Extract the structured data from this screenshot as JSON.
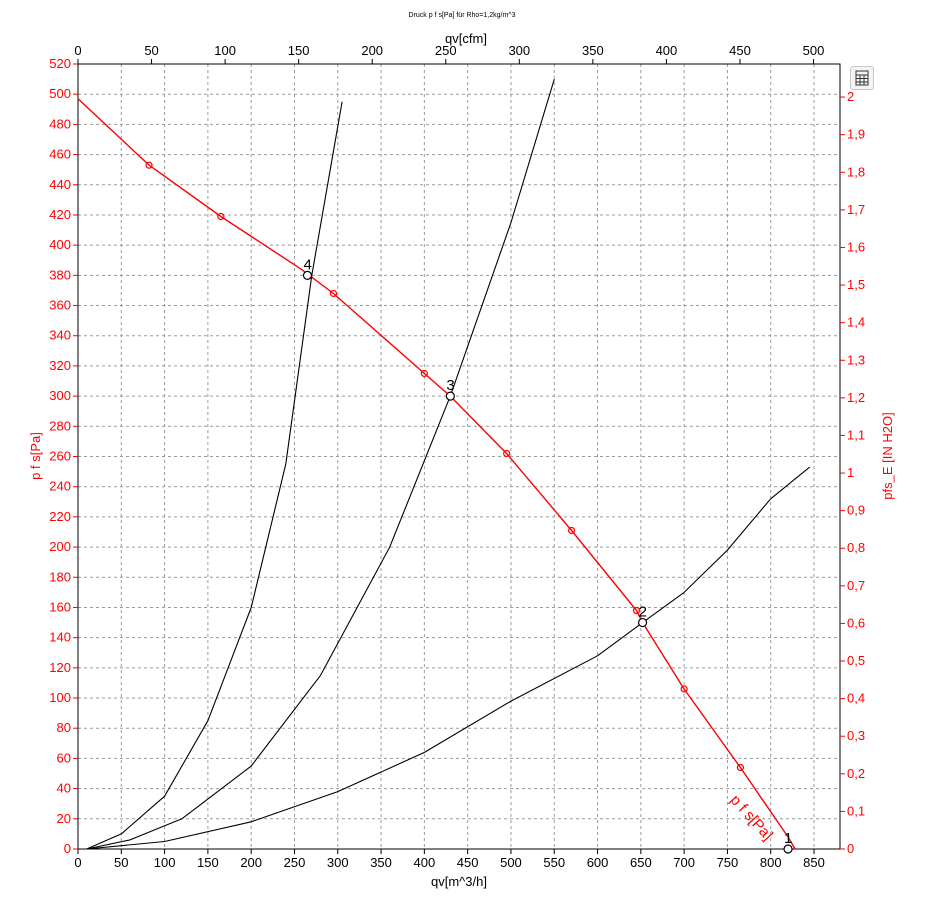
{
  "title": "Druck p f s[Pa] für Rho=1,2kg/m^3",
  "toolbar": {
    "icon": "table-icon"
  },
  "colors": {
    "fan_curve": "#ff0000",
    "system_curves": "#000000",
    "grid": "#9a9a9a"
  },
  "chart_data": {
    "type": "line",
    "x": {
      "label": "qv[m^3/h]",
      "range": [
        0,
        880
      ],
      "ticks": [
        0,
        50,
        100,
        150,
        200,
        250,
        300,
        350,
        400,
        450,
        500,
        550,
        600,
        650,
        700,
        750,
        800,
        850
      ]
    },
    "x2": {
      "label": "qv[cfm]",
      "range": [
        0,
        518
      ],
      "ticks": [
        0,
        50,
        100,
        150,
        200,
        250,
        300,
        350,
        400,
        450,
        500
      ]
    },
    "y": {
      "label": "p f s[Pa]",
      "range": [
        0,
        520
      ],
      "ticks": [
        0,
        20,
        40,
        60,
        80,
        100,
        120,
        140,
        160,
        180,
        200,
        220,
        240,
        260,
        280,
        300,
        320,
        340,
        360,
        380,
        400,
        420,
        440,
        460,
        480,
        500,
        520
      ]
    },
    "y2": {
      "label": "pfs_E [IN H2O]",
      "range": [
        0,
        2.088
      ],
      "ticks": [
        "0",
        "0,1",
        "0,2",
        "0,3",
        "0,4",
        "0,5",
        "0,6",
        "0,7",
        "0,8",
        "0,9",
        "1",
        "1,1",
        "1,2",
        "1,3",
        "1,4",
        "1,5",
        "1,6",
        "1,7",
        "1,8",
        "1,9",
        "2"
      ]
    },
    "grid": true,
    "series": [
      {
        "name": "p f s[Pa]",
        "color": "#ff0000",
        "points": [
          [
            0,
            497
          ],
          [
            82,
            453
          ],
          [
            165,
            419
          ],
          [
            258,
            384
          ],
          [
            295,
            368
          ],
          [
            400,
            315
          ],
          [
            430,
            300
          ],
          [
            495,
            262
          ],
          [
            570,
            211
          ],
          [
            645,
            158
          ],
          [
            652,
            150
          ],
          [
            700,
            106
          ],
          [
            765,
            54
          ],
          [
            820,
            8
          ],
          [
            828,
            0
          ]
        ],
        "markers": [
          [
            82,
            453
          ],
          [
            165,
            419
          ],
          [
            295,
            368
          ],
          [
            400,
            315
          ],
          [
            495,
            262
          ],
          [
            570,
            211
          ],
          [
            645,
            158
          ],
          [
            700,
            106
          ],
          [
            765,
            54
          ]
        ]
      },
      {
        "color": "#000000",
        "points": [
          [
            10,
            0
          ],
          [
            50,
            10
          ],
          [
            100,
            35
          ],
          [
            150,
            85
          ],
          [
            200,
            160
          ],
          [
            240,
            255
          ],
          [
            270,
            380
          ],
          [
            305,
            495
          ]
        ]
      },
      {
        "color": "#000000",
        "points": [
          [
            10,
            0
          ],
          [
            60,
            6
          ],
          [
            120,
            20
          ],
          [
            200,
            55
          ],
          [
            280,
            115
          ],
          [
            360,
            200
          ],
          [
            430,
            300
          ],
          [
            500,
            415
          ],
          [
            550,
            510
          ]
        ]
      },
      {
        "color": "#000000",
        "points": [
          [
            10,
            0
          ],
          [
            100,
            5
          ],
          [
            200,
            18
          ],
          [
            300,
            38
          ],
          [
            400,
            64
          ],
          [
            500,
            98
          ],
          [
            600,
            128
          ],
          [
            652,
            150
          ],
          [
            700,
            170
          ],
          [
            750,
            198
          ],
          [
            800,
            232
          ],
          [
            845,
            253
          ]
        ]
      }
    ],
    "operating_points": [
      {
        "label": "1",
        "x": 820,
        "y": 0
      },
      {
        "label": "2",
        "x": 652,
        "y": 150
      },
      {
        "label": "3",
        "x": 430,
        "y": 300
      },
      {
        "label": "4",
        "x": 265,
        "y": 380
      }
    ],
    "annotations": [
      {
        "text": "p f s[Pa]",
        "x": 808,
        "y": 15,
        "angle": 48,
        "color": "#ff0000"
      }
    ]
  }
}
